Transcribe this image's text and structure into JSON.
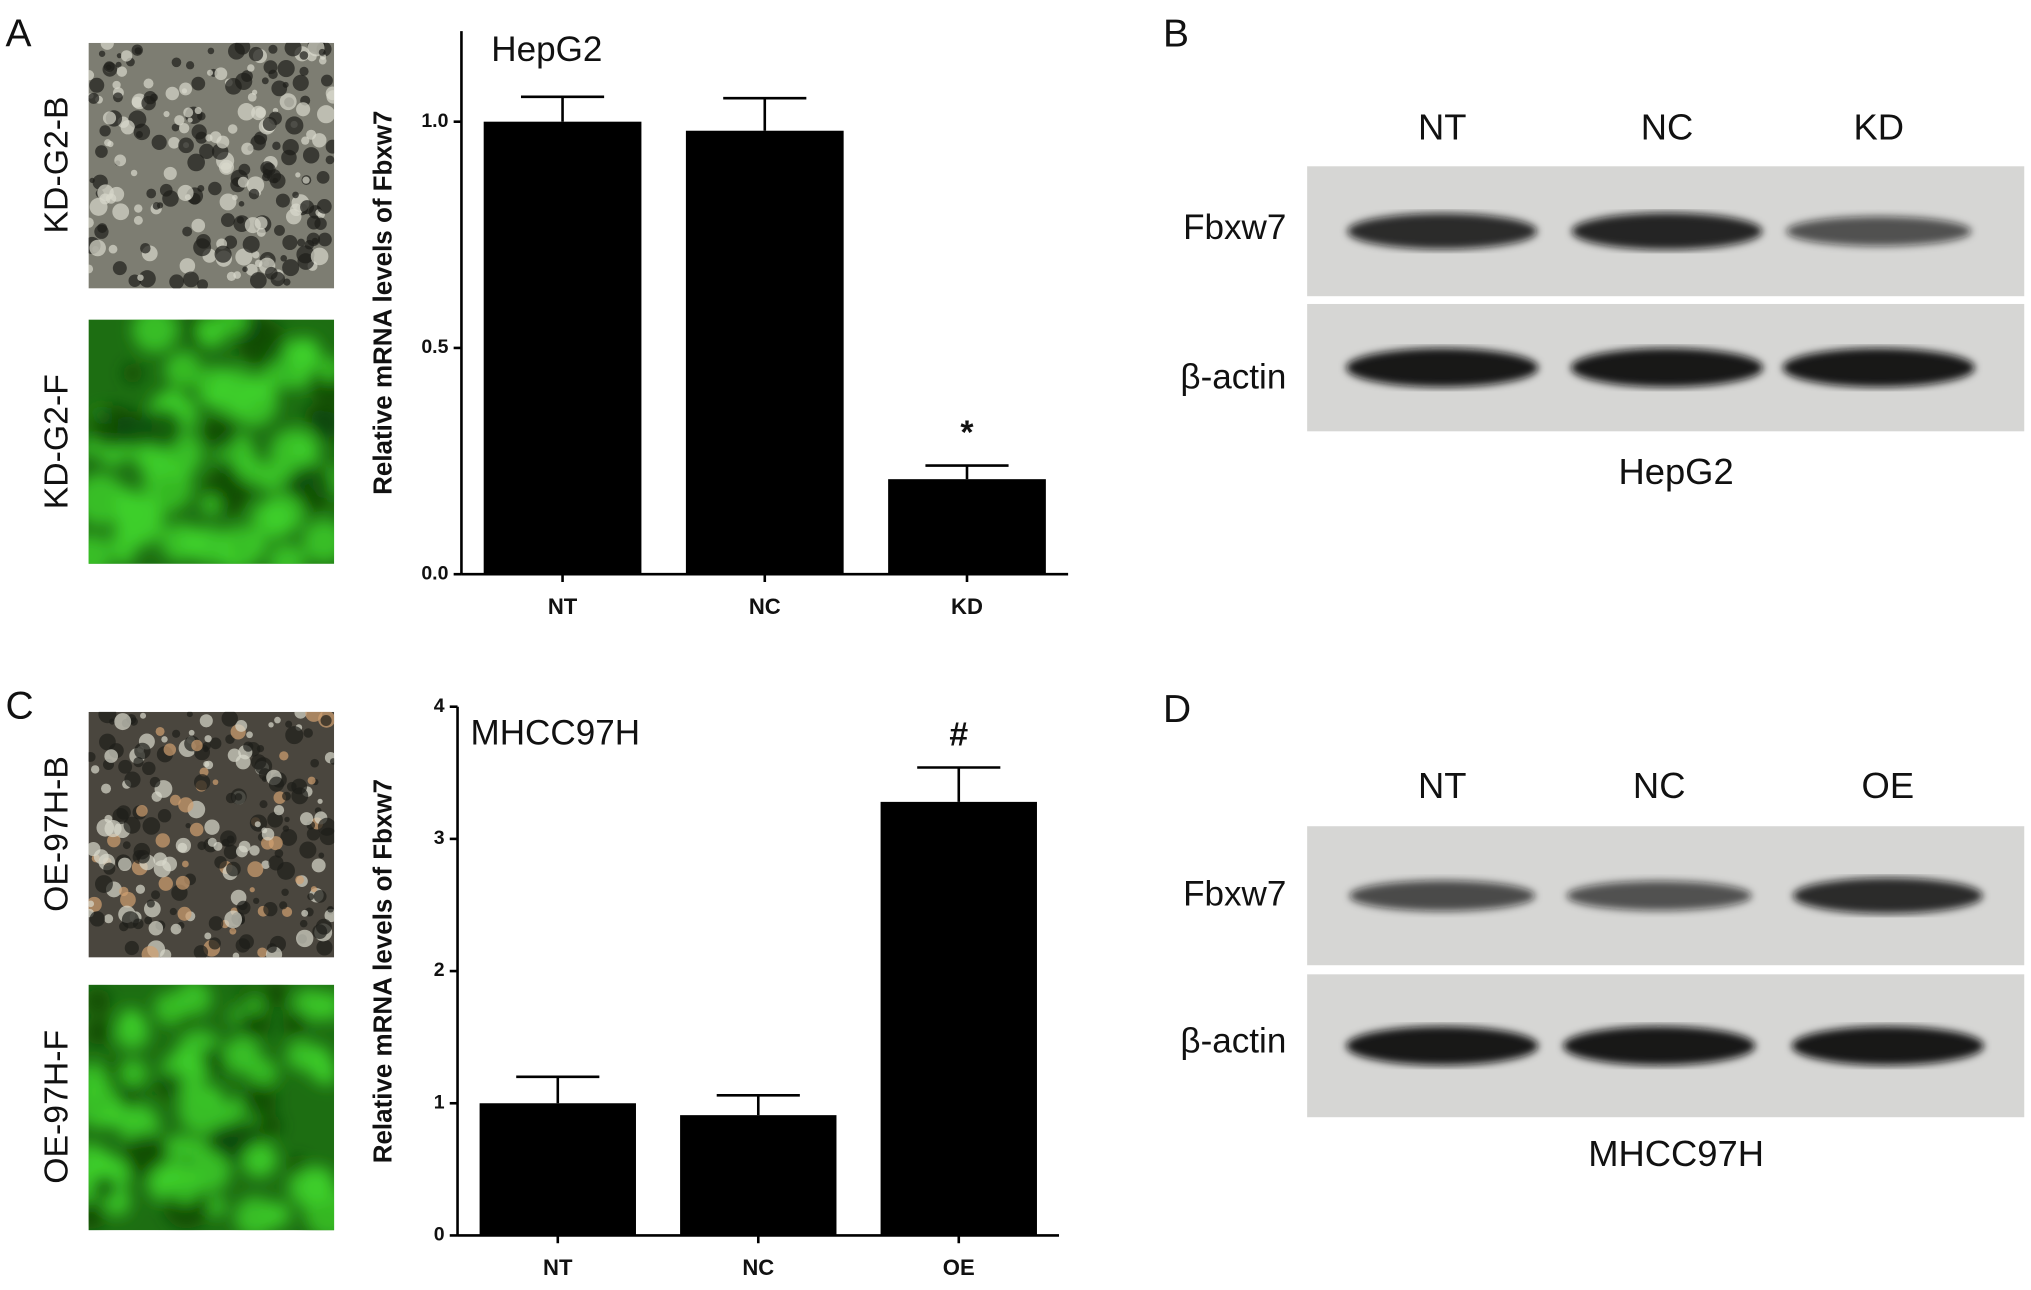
{
  "panel_labels": [
    "A",
    "B",
    "C",
    "D"
  ],
  "image_labels": [
    "KD-G2-B",
    "KD-G2-F",
    "OE-97H-B",
    "OE-97H-F"
  ],
  "blots": [
    {
      "lanes": [
        "NT",
        "NC",
        "KD"
      ],
      "rows": [
        "Fbxw7",
        "β-actin"
      ],
      "caption": "HepG2"
    },
    {
      "lanes": [
        "NT",
        "NC",
        "OE"
      ],
      "rows": [
        "Fbxw7",
        "β-actin"
      ],
      "caption": "MHCC97H"
    }
  ],
  "chart_data": [
    {
      "type": "bar",
      "title": "HepG2",
      "y_label": "Relative mRNA levels of Fbxw7",
      "categories": [
        "NT",
        "NC",
        "KD"
      ],
      "values": [
        1.0,
        0.98,
        0.21
      ],
      "errors": [
        0.055,
        0.072,
        0.03
      ],
      "value_annotations": [
        null,
        null,
        "*"
      ],
      "color": "#000000",
      "ylim": [
        0,
        1.2
      ],
      "yticks": [
        {
          "value": 0,
          "label": "0.0"
        },
        {
          "value": 0.5,
          "label": "0.5"
        },
        {
          "value": 1,
          "label": "1.0"
        }
      ]
    },
    {
      "type": "bar",
      "title": "MHCC97H",
      "y_label": "Relative mRNA levels of Fbxw7",
      "categories": [
        "NT",
        "NC",
        "OE"
      ],
      "values": [
        1.0,
        0.91,
        3.28
      ],
      "errors": [
        0.2,
        0.15,
        0.26
      ],
      "value_annotations": [
        null,
        null,
        "#"
      ],
      "color": "#000000",
      "ylim": [
        0,
        4
      ],
      "yticks": [
        0,
        1,
        2,
        3,
        4
      ]
    }
  ]
}
